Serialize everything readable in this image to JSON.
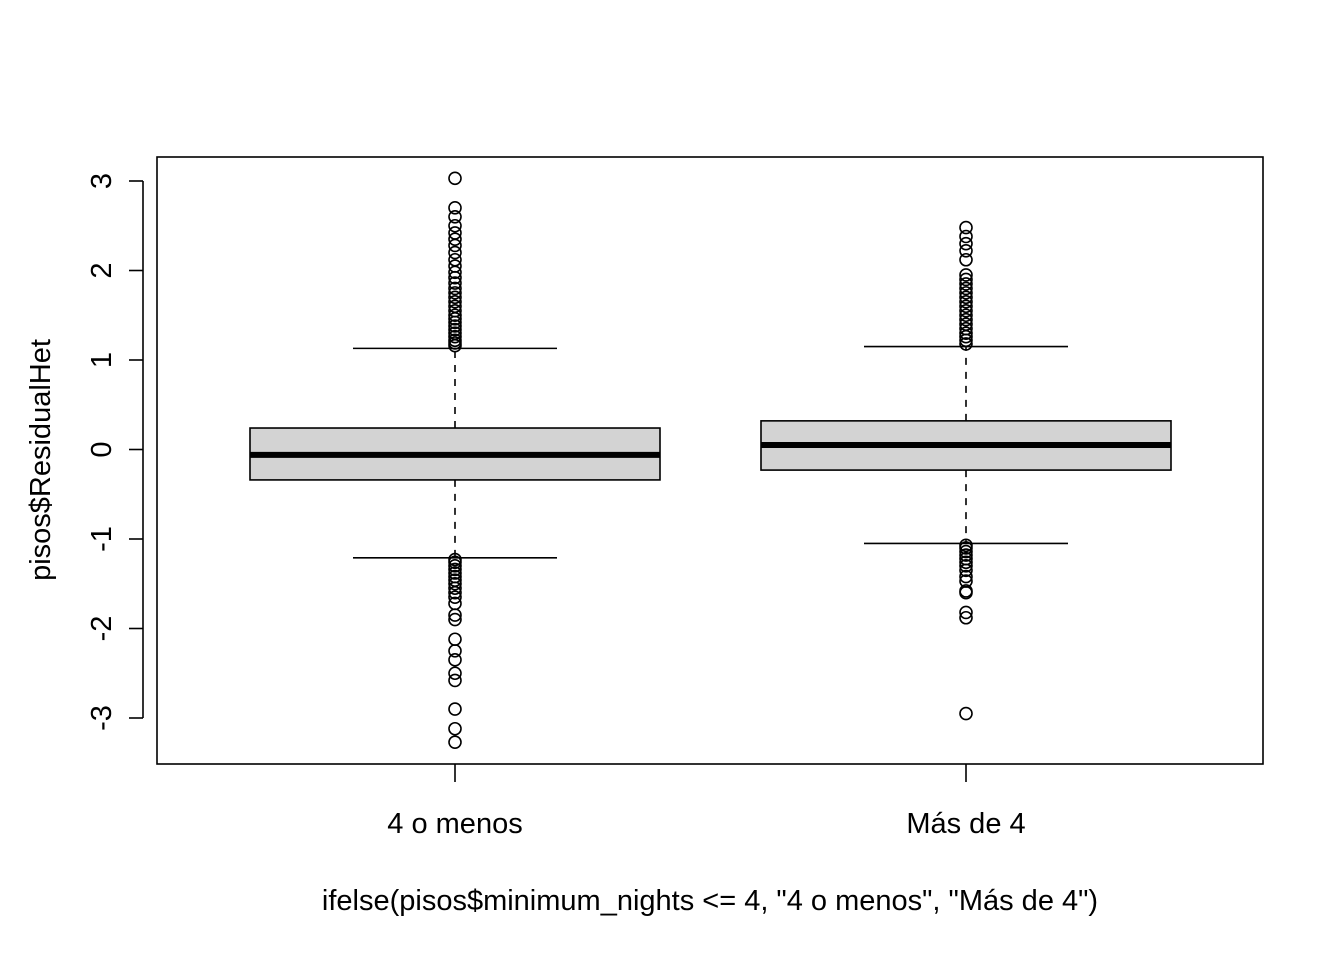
{
  "chart_data": {
    "type": "boxplot",
    "title": "",
    "xlabel": "ifelse(pisos$minimum_nights <= 4, \"4 o menos\", \"Más de 4\")",
    "ylabel": "pisos$ResidualHet",
    "ylim": [
      -3.5,
      3.3
    ],
    "y_ticks": [
      -3,
      -2,
      -1,
      0,
      1,
      2,
      3
    ],
    "y_tick_labels": [
      "-3",
      "-2",
      "-1",
      "0",
      "1",
      "2",
      "3"
    ],
    "categories": [
      "4 o menos",
      "Más de 4"
    ],
    "box_fill": "#d3d3d3",
    "grid": false,
    "legend": "none",
    "boxes": [
      {
        "category": "4 o menos",
        "whisker_low": -1.21,
        "q1": -0.34,
        "median": -0.06,
        "q3": 0.24,
        "whisker_high": 1.13,
        "outliers": [
          3.03,
          2.7,
          2.6,
          2.5,
          2.42,
          2.35,
          2.28,
          2.2,
          2.12,
          2.05,
          1.98,
          1.92,
          1.86,
          1.8,
          1.75,
          1.7,
          1.65,
          1.6,
          1.55,
          1.5,
          1.46,
          1.42,
          1.38,
          1.34,
          1.3,
          1.26,
          1.22,
          1.19,
          1.16,
          -1.23,
          -1.26,
          -1.3,
          -1.34,
          -1.38,
          -1.42,
          -1.46,
          -1.5,
          -1.55,
          -1.6,
          -1.65,
          -1.72,
          -1.85,
          -1.9,
          -2.12,
          -2.25,
          -2.35,
          -2.5,
          -2.58,
          -2.9,
          -3.12,
          -3.27
        ]
      },
      {
        "category": "Más de 4",
        "whisker_low": -1.05,
        "q1": -0.23,
        "median": 0.05,
        "q3": 0.32,
        "whisker_high": 1.15,
        "outliers": [
          2.48,
          2.38,
          2.3,
          2.22,
          2.12,
          1.95,
          1.9,
          1.85,
          1.8,
          1.75,
          1.7,
          1.65,
          1.6,
          1.55,
          1.5,
          1.45,
          1.4,
          1.35,
          1.3,
          1.26,
          1.22,
          1.18,
          -1.07,
          -1.1,
          -1.14,
          -1.18,
          -1.22,
          -1.26,
          -1.3,
          -1.35,
          -1.42,
          -1.47,
          -1.58,
          -1.6,
          -1.82,
          -1.88,
          -2.95
        ]
      }
    ]
  }
}
